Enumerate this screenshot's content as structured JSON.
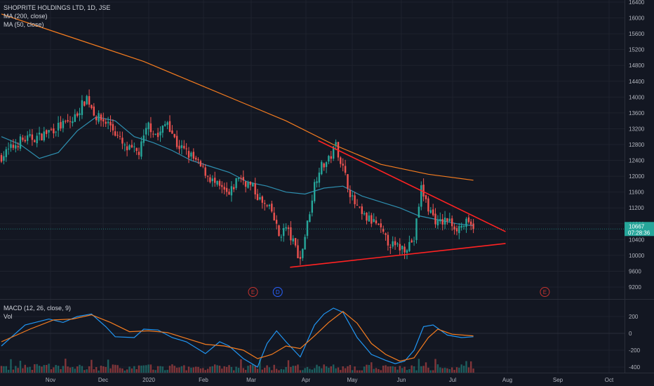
{
  "legend": {
    "symbol": "SHOPRITE HOLDINGS LTD, 1D, JSE",
    "ma200": "MA (200, close)",
    "ma50": "MA (50, close)",
    "macd": "MACD (12, 26, close, 9)",
    "vol": "Vol"
  },
  "price_labels": {
    "last": "10667",
    "countdown": "07:28:36"
  },
  "colors": {
    "background": "#131722",
    "grid": "#1e222d",
    "text": "#b2b5be",
    "up": "#26a69a",
    "down": "#ef5350",
    "ma200": "#f57c1f",
    "ma50": "#2e8fb0",
    "trendline": "#ff2222",
    "macd": "#2196f3",
    "signal": "#f57c1f",
    "event_earnings": "#c5332f",
    "event_dividend": "#2962ff"
  },
  "chart_data": [
    {
      "type": "candlestick",
      "title": "SHOPRITE HOLDINGS LTD, 1D, JSE",
      "x_labels": [
        "Nov",
        "Dec",
        "2020",
        "Feb",
        "Mar",
        "Apr",
        "May",
        "Jun",
        "Jul",
        "Aug",
        "Sep",
        "Oct"
      ],
      "y_ticks": [
        9200,
        9600,
        10000,
        10400,
        10800,
        11200,
        11600,
        12000,
        12400,
        12800,
        13200,
        13600,
        14000,
        14400,
        14800,
        15200,
        15600,
        16000,
        16400
      ],
      "ylim": [
        9200,
        16400
      ],
      "last_price": 10667,
      "close_path": [
        [
          0,
          12500
        ],
        [
          8,
          12900
        ],
        [
          16,
          13000
        ],
        [
          22,
          13200
        ],
        [
          30,
          13400
        ],
        [
          36,
          14000
        ],
        [
          40,
          13500
        ],
        [
          46,
          13300
        ],
        [
          52,
          12700
        ],
        [
          58,
          12600
        ],
        [
          62,
          13300
        ],
        [
          66,
          13000
        ],
        [
          70,
          13400
        ],
        [
          74,
          12800
        ],
        [
          80,
          12500
        ],
        [
          86,
          12100
        ],
        [
          90,
          11800
        ],
        [
          96,
          11500
        ],
        [
          100,
          12000
        ],
        [
          106,
          11700
        ],
        [
          110,
          11300
        ],
        [
          114,
          11100
        ],
        [
          117,
          10500
        ],
        [
          120,
          10700
        ],
        [
          124,
          10200
        ],
        [
          126,
          9900
        ],
        [
          129,
          10800
        ],
        [
          132,
          11800
        ],
        [
          134,
          12200
        ],
        [
          138,
          12400
        ],
        [
          141,
          12800
        ],
        [
          144,
          12200
        ],
        [
          148,
          11400
        ],
        [
          152,
          11000
        ],
        [
          158,
          10800
        ],
        [
          162,
          10400
        ],
        [
          166,
          10200
        ],
        [
          170,
          10200
        ],
        [
          174,
          10400
        ],
        [
          177,
          11700
        ],
        [
          180,
          11200
        ],
        [
          184,
          10800
        ],
        [
          188,
          10900
        ],
        [
          192,
          10700
        ],
        [
          196,
          10800
        ],
        [
          199,
          10667
        ]
      ],
      "ma200_path": [
        [
          0,
          16100
        ],
        [
          20,
          15700
        ],
        [
          40,
          15300
        ],
        [
          60,
          14900
        ],
        [
          80,
          14400
        ],
        [
          100,
          13900
        ],
        [
          120,
          13400
        ],
        [
          140,
          12800
        ],
        [
          160,
          12300
        ],
        [
          180,
          12050
        ],
        [
          199,
          11900
        ]
      ],
      "ma50_path": [
        [
          0,
          13000
        ],
        [
          8,
          12800
        ],
        [
          16,
          12450
        ],
        [
          24,
          12600
        ],
        [
          32,
          13150
        ],
        [
          40,
          13500
        ],
        [
          48,
          13400
        ],
        [
          56,
          13000
        ],
        [
          64,
          12850
        ],
        [
          72,
          12650
        ],
        [
          80,
          12400
        ],
        [
          88,
          12250
        ],
        [
          96,
          12100
        ],
        [
          104,
          11850
        ],
        [
          112,
          11750
        ],
        [
          120,
          11600
        ],
        [
          128,
          11550
        ],
        [
          136,
          11700
        ],
        [
          144,
          11750
        ],
        [
          152,
          11500
        ],
        [
          160,
          11350
        ],
        [
          168,
          11200
        ],
        [
          176,
          11000
        ],
        [
          184,
          10900
        ],
        [
          192,
          10800
        ],
        [
          199,
          10750
        ]
      ],
      "trendlines": [
        {
          "from": [
            "2020-04-09",
            12900
          ],
          "to": [
            "2020-07-31",
            10600
          ]
        },
        {
          "from": [
            "2020-03-23",
            9700
          ],
          "to": [
            "2020-07-31",
            10300
          ]
        }
      ],
      "events": [
        {
          "label": "E",
          "kind": "earnings",
          "date": "2020-03-02"
        },
        {
          "label": "D",
          "kind": "dividend",
          "date": "2020-03-16"
        },
        {
          "label": "E",
          "kind": "earnings",
          "date": "2020-08-24"
        }
      ]
    },
    {
      "type": "line",
      "title": "MACD (12, 26, close, 9)",
      "y_ticks": [
        200,
        0,
        -200,
        -400
      ],
      "ylim": [
        -450,
        350
      ],
      "series": [
        {
          "name": "MACD",
          "points": [
            [
              0,
              -150
            ],
            [
              10,
              100
            ],
            [
              20,
              170
            ],
            [
              26,
              130
            ],
            [
              32,
              200
            ],
            [
              38,
              230
            ],
            [
              44,
              80
            ],
            [
              48,
              -40
            ],
            [
              56,
              -50
            ],
            [
              60,
              50
            ],
            [
              66,
              40
            ],
            [
              72,
              -50
            ],
            [
              78,
              -100
            ],
            [
              86,
              -240
            ],
            [
              92,
              -100
            ],
            [
              96,
              -150
            ],
            [
              102,
              -300
            ],
            [
              108,
              -400
            ],
            [
              112,
              -120
            ],
            [
              116,
              30
            ],
            [
              120,
              -100
            ],
            [
              126,
              -280
            ],
            [
              132,
              100
            ],
            [
              136,
              230
            ],
            [
              140,
              300
            ],
            [
              144,
              250
            ],
            [
              150,
              -50
            ],
            [
              156,
              -250
            ],
            [
              162,
              -320
            ],
            [
              166,
              -360
            ],
            [
              170,
              -330
            ],
            [
              174,
              -200
            ],
            [
              178,
              80
            ],
            [
              182,
              100
            ],
            [
              188,
              -20
            ],
            [
              194,
              -50
            ],
            [
              199,
              -40
            ]
          ]
        },
        {
          "name": "Signal",
          "points": [
            [
              0,
              -100
            ],
            [
              12,
              50
            ],
            [
              22,
              160
            ],
            [
              30,
              170
            ],
            [
              38,
              220
            ],
            [
              46,
              130
            ],
            [
              54,
              20
            ],
            [
              62,
              30
            ],
            [
              70,
              10
            ],
            [
              78,
              -60
            ],
            [
              86,
              -130
            ],
            [
              94,
              -150
            ],
            [
              102,
              -200
            ],
            [
              108,
              -300
            ],
            [
              114,
              -250
            ],
            [
              120,
              -150
            ],
            [
              126,
              -180
            ],
            [
              132,
              -30
            ],
            [
              138,
              130
            ],
            [
              144,
              260
            ],
            [
              150,
              120
            ],
            [
              156,
              -120
            ],
            [
              162,
              -250
            ],
            [
              168,
              -330
            ],
            [
              174,
              -290
            ],
            [
              180,
              -50
            ],
            [
              184,
              50
            ],
            [
              190,
              -10
            ],
            [
              199,
              -30
            ]
          ]
        }
      ]
    }
  ]
}
